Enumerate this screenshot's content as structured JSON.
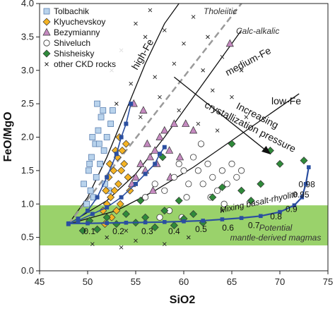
{
  "chart_data": {
    "type": "scatter",
    "xlabel": "SiO2",
    "ylabel": "FeO/MgO",
    "xlim": [
      45,
      75
    ],
    "ylim": [
      0,
      4
    ],
    "x_ticks": [
      "45",
      "50",
      "55",
      "60",
      "65",
      "70",
      "75"
    ],
    "y_ticks": [
      "0.0",
      "0.5",
      "1.0",
      "1.5",
      "2.0",
      "2.5",
      "3.0",
      "3.5",
      "4.0"
    ],
    "grid": false,
    "legend_position": "top-left",
    "colors": {
      "tolbachik": "#b9d3ec",
      "klyuchevskoy": "#f4b324",
      "bezymianny": "#c58ac0",
      "shiveluch": "#ffffff",
      "shisheisky": "#2f8a3a",
      "other": "#222222",
      "mixing_curve": "#2b4fa0",
      "mantle_band": "#8fcd5b",
      "dashed_line": "#9a9a9a"
    },
    "series": [
      {
        "name": "Tolbachik",
        "marker": "square",
        "points": [
          [
            49.6,
            1.3
          ],
          [
            50.1,
            1.5
          ],
          [
            50.4,
            1.7
          ],
          [
            50.8,
            1.9
          ],
          [
            51.1,
            2.1
          ],
          [
            51.4,
            2.3
          ],
          [
            50.3,
            1.2
          ],
          [
            50.9,
            1.4
          ],
          [
            51.3,
            1.6
          ],
          [
            51.7,
            1.8
          ],
          [
            52.0,
            2.0
          ],
          [
            52.4,
            2.2
          ],
          [
            51.0,
            2.5
          ],
          [
            51.6,
            2.4
          ],
          [
            50.6,
            1.1
          ],
          [
            49.9,
            1.0
          ],
          [
            52.2,
            1.2
          ],
          [
            51.8,
            1.3
          ],
          [
            50.5,
            2.0
          ],
          [
            52.6,
            2.4
          ],
          [
            51.2,
            1.9
          ],
          [
            50.2,
            1.6
          ]
        ]
      },
      {
        "name": "Klyuchevskoy",
        "marker": "diamond",
        "points": [
          [
            51.6,
            0.9
          ],
          [
            52.0,
            1.0
          ],
          [
            52.4,
            1.1
          ],
          [
            52.8,
            1.2
          ],
          [
            53.2,
            1.3
          ],
          [
            53.5,
            1.5
          ],
          [
            53.8,
            1.6
          ],
          [
            52.2,
            1.4
          ],
          [
            52.7,
            1.5
          ],
          [
            53.1,
            1.7
          ],
          [
            53.6,
            1.8
          ],
          [
            54.0,
            1.9
          ],
          [
            52.5,
            0.8
          ],
          [
            53.0,
            0.9
          ],
          [
            53.4,
            1.0
          ],
          [
            51.9,
            1.2
          ],
          [
            54.2,
            1.4
          ],
          [
            53.3,
            2.0
          ],
          [
            52.9,
            1.8
          ],
          [
            51.8,
            0.7
          ],
          [
            52.3,
            1.6
          ],
          [
            54.4,
            1.2
          ]
        ]
      },
      {
        "name": "Bezymianny",
        "marker": "triangle",
        "points": [
          [
            54.6,
            1.3
          ],
          [
            55.0,
            1.4
          ],
          [
            55.5,
            1.6
          ],
          [
            56.0,
            1.5
          ],
          [
            56.5,
            1.7
          ],
          [
            57.0,
            1.8
          ],
          [
            57.5,
            2.0
          ],
          [
            58.0,
            2.1
          ],
          [
            58.5,
            1.8
          ],
          [
            59.0,
            2.2
          ],
          [
            56.2,
            1.9
          ],
          [
            54.8,
            2.5
          ],
          [
            55.8,
            2.4
          ],
          [
            58.6,
            1.4
          ],
          [
            57.2,
            1.6
          ],
          [
            56.8,
            1.2
          ],
          [
            60.2,
            2.2
          ],
          [
            61.0,
            2.1
          ],
          [
            59.6,
            1.7
          ],
          [
            64.8,
            3.4
          ]
        ]
      },
      {
        "name": "Shiveluch",
        "marker": "circle",
        "points": [
          [
            56.0,
            1.1
          ],
          [
            57.0,
            1.3
          ],
          [
            58.0,
            1.2
          ],
          [
            59.0,
            1.4
          ],
          [
            59.5,
            1.6
          ],
          [
            60.0,
            1.5
          ],
          [
            60.5,
            1.3
          ],
          [
            61.0,
            1.7
          ],
          [
            61.5,
            1.5
          ],
          [
            62.0,
            1.3
          ],
          [
            62.5,
            1.6
          ],
          [
            63.0,
            1.4
          ],
          [
            63.5,
            1.2
          ],
          [
            64.0,
            1.5
          ],
          [
            64.5,
            1.3
          ],
          [
            65.0,
            1.6
          ],
          [
            65.5,
            1.4
          ],
          [
            66.0,
            1.5
          ],
          [
            61.8,
            1.9
          ],
          [
            60.3,
            1.1
          ],
          [
            58.5,
            0.9
          ],
          [
            57.5,
            0.8
          ],
          [
            59.8,
            0.8
          ],
          [
            62.8,
            1.1
          ],
          [
            64.2,
            1.0
          ]
        ]
      },
      {
        "name": "Shisheisky",
        "marker": "diamond",
        "points": [
          [
            49.5,
            0.6
          ],
          [
            50.2,
            0.75
          ],
          [
            51.0,
            0.62
          ],
          [
            52.0,
            0.8
          ],
          [
            53.0,
            0.7
          ],
          [
            54.0,
            0.85
          ],
          [
            55.0,
            0.72
          ],
          [
            56.0,
            0.8
          ],
          [
            57.0,
            0.65
          ],
          [
            58.0,
            0.9
          ],
          [
            59.0,
            0.68
          ],
          [
            60.0,
            0.78
          ],
          [
            61.0,
            0.85
          ],
          [
            62.0,
            0.72
          ],
          [
            63.0,
            1.1
          ],
          [
            64.0,
            1.25
          ],
          [
            65.0,
            1.9
          ],
          [
            66.0,
            1.2
          ],
          [
            67.0,
            1.05
          ],
          [
            68.0,
            1.3
          ],
          [
            69.0,
            1.8
          ],
          [
            70.0,
            1.6
          ],
          [
            72.5,
            1.65
          ],
          [
            55.5,
            1.05
          ],
          [
            57.8,
            1.7
          ],
          [
            59.5,
            1.05
          ]
        ]
      },
      {
        "name": "other CKD rocks",
        "marker": "x",
        "points": [
          [
            52.5,
            3.0
          ],
          [
            53.5,
            3.3
          ],
          [
            54.5,
            2.8
          ],
          [
            55.0,
            3.7
          ],
          [
            56.0,
            3.5
          ],
          [
            57.0,
            2.9
          ],
          [
            58.0,
            3.6
          ],
          [
            59.0,
            3.1
          ],
          [
            60.0,
            3.4
          ],
          [
            61.0,
            3.8
          ],
          [
            62.0,
            3.0
          ],
          [
            63.0,
            2.7
          ],
          [
            64.0,
            3.2
          ],
          [
            65.0,
            2.6
          ],
          [
            66.0,
            3.0
          ],
          [
            55.5,
            2.3
          ],
          [
            53.0,
            2.5
          ],
          [
            57.5,
            2.6
          ],
          [
            59.5,
            2.4
          ],
          [
            61.5,
            2.2
          ],
          [
            63.5,
            2.1
          ],
          [
            66.5,
            2.3
          ],
          [
            60.5,
            0.5
          ],
          [
            58.0,
            0.4
          ],
          [
            55.0,
            0.45
          ],
          [
            54.0,
            0.6
          ],
          [
            52.0,
            0.5
          ],
          [
            64.0,
            0.9
          ],
          [
            50.5,
            0.4
          ],
          [
            53.5,
            0.35
          ],
          [
            62.5,
            3.5
          ],
          [
            56.5,
            3.9
          ]
        ]
      }
    ],
    "mixing_curve": {
      "name": "Mixing basalt-rhyolite",
      "points": [
        [
          48.0,
          0.71
        ],
        [
          50.0,
          0.71
        ],
        [
          52.0,
          0.715
        ],
        [
          54.0,
          0.72
        ],
        [
          56.0,
          0.725
        ],
        [
          58.0,
          0.73
        ],
        [
          60.0,
          0.74
        ],
        [
          62.0,
          0.75
        ],
        [
          64.0,
          0.77
        ],
        [
          66.0,
          0.79
        ],
        [
          68.0,
          0.82
        ],
        [
          70.0,
          0.88
        ],
        [
          71.5,
          0.98
        ],
        [
          72.3,
          1.1
        ],
        [
          72.7,
          1.3
        ],
        [
          73.0,
          1.55
        ]
      ],
      "fraction_labels": [
        {
          "label": "0.1",
          "x": 50.2,
          "y": 0.55
        },
        {
          "label": "0.2",
          "x": 53.2,
          "y": 0.55
        },
        {
          "label": "0.3",
          "x": 56.2,
          "y": 0.55
        },
        {
          "label": "0.4",
          "x": 59.0,
          "y": 0.55
        },
        {
          "label": "0.5",
          "x": 61.8,
          "y": 0.58
        },
        {
          "label": "0.6",
          "x": 64.6,
          "y": 0.6
        },
        {
          "label": "0.7",
          "x": 67.3,
          "y": 0.64
        },
        {
          "label": "0.8",
          "x": 69.6,
          "y": 0.77
        },
        {
          "label": "0.9",
          "x": 71.2,
          "y": 0.88
        },
        {
          "label": "0.95",
          "x": 72.2,
          "y": 1.1
        },
        {
          "label": "0.98",
          "x": 72.8,
          "y": 1.25
        }
      ]
    },
    "trend_series": [
      {
        "points": [
          [
            48.0,
            0.7
          ],
          [
            49.0,
            0.78
          ],
          [
            50.0,
            0.9
          ],
          [
            51.0,
            1.1
          ],
          [
            52.0,
            1.4
          ],
          [
            53.0,
            1.75
          ],
          [
            53.5,
            2.0
          ],
          [
            54.0,
            2.2
          ],
          [
            54.5,
            2.5
          ]
        ]
      },
      {
        "points": [
          [
            49.0,
            0.75
          ],
          [
            50.5,
            0.85
          ],
          [
            52.0,
            0.95
          ],
          [
            53.5,
            1.1
          ],
          [
            55.0,
            1.3
          ],
          [
            56.0,
            1.45
          ],
          [
            57.0,
            1.6
          ],
          [
            57.5,
            1.75
          ],
          [
            58.0,
            1.85
          ]
        ]
      }
    ],
    "boundary_lines": [
      {
        "label": "high-Fe",
        "points": [
          [
            48.0,
            0.7
          ],
          [
            50.0,
            1.1
          ],
          [
            52.0,
            1.7
          ],
          [
            54.0,
            2.4
          ],
          [
            56.0,
            3.1
          ],
          [
            58.0,
            3.7
          ],
          [
            59.5,
            4.0
          ]
        ]
      },
      {
        "label": "medium-Fe",
        "points": [
          [
            48.0,
            0.7
          ],
          [
            52.0,
            1.05
          ],
          [
            55.0,
            1.45
          ],
          [
            58.0,
            2.0
          ],
          [
            61.0,
            2.6
          ],
          [
            64.0,
            3.2
          ],
          [
            66.0,
            3.6
          ]
        ]
      },
      {
        "label": "low-Fe",
        "points": [
          [
            48.0,
            0.7
          ],
          [
            53.0,
            0.9
          ],
          [
            57.0,
            1.2
          ],
          [
            61.0,
            1.55
          ],
          [
            65.0,
            1.95
          ],
          [
            69.0,
            2.35
          ],
          [
            72.0,
            2.65
          ]
        ]
      }
    ],
    "dashed_line": {
      "label": "Tholeiitic",
      "label2": "Calc-alkalic",
      "points": [
        [
          48.0,
          0.7
        ],
        [
          66.0,
          4.0
        ]
      ]
    },
    "band": {
      "label": "Potential",
      "label2": "mantle-derived magmas",
      "ymin": 0.38,
      "ymax": 0.98
    },
    "arrow": {
      "label": "Increasing",
      "label2": "crystallization pressure",
      "from": [
        59.0,
        2.9
      ],
      "to": [
        69.0,
        1.75
      ]
    },
    "annotations": {
      "high_fe": "high-Fe",
      "medium_fe": "medium-Fe",
      "low_fe": "low-Fe"
    }
  }
}
